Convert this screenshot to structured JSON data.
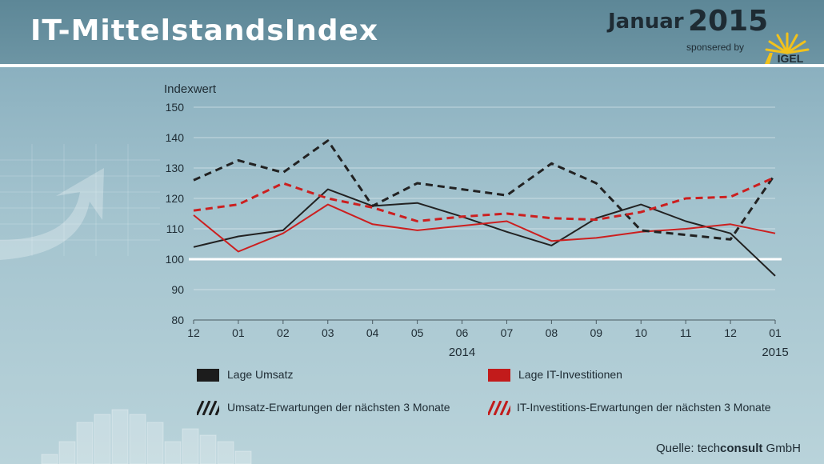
{
  "header": {
    "title": "IT-MittelstandsIndex",
    "month": "Januar",
    "year": "2015",
    "sponsored": "sponsered by",
    "logo_text": "IGEL"
  },
  "source": {
    "prefix": "Quelle: tech",
    "bold": "consult",
    "suffix": " GmbH"
  },
  "colors": {
    "black_series": "#222222",
    "red_series": "#cc1f1f",
    "reference_line": "#ffffff"
  },
  "chart_data": {
    "type": "line",
    "ylabel": "Indexwert",
    "ylim": [
      80,
      150
    ],
    "yticks": [
      "80",
      "90",
      "100",
      "110",
      "120",
      "130",
      "140",
      "150"
    ],
    "categories": [
      "12",
      "01",
      "02",
      "03",
      "04",
      "05",
      "06",
      "07",
      "08",
      "09",
      "10",
      "11",
      "12",
      "01"
    ],
    "year_labels": [
      {
        "label": "2014",
        "index": 6
      },
      {
        "label": "2015",
        "index": 13
      }
    ],
    "reference_value": 100,
    "grid": true,
    "series": [
      {
        "name": "Lage Umsatz",
        "style": "solid",
        "color": "#222222",
        "values": [
          104,
          107.5,
          109.5,
          123,
          117.5,
          118.5,
          114,
          109,
          104.5,
          113.5,
          118,
          112.5,
          108.5,
          94.5
        ]
      },
      {
        "name": "Lage IT-Investitionen",
        "style": "solid",
        "color": "#cc1f1f",
        "values": [
          114.5,
          102.5,
          108.5,
          118,
          111.5,
          109.5,
          111,
          112.5,
          106,
          107,
          109,
          110,
          111.5,
          108.5
        ]
      },
      {
        "name": "Umsatz-Erwartungen der nächsten 3 Monate",
        "style": "dashed",
        "color": "#222222",
        "values": [
          126,
          132.5,
          128.5,
          139,
          117.5,
          125,
          123,
          121,
          131.5,
          125,
          109.5,
          108,
          106.5,
          128
        ]
      },
      {
        "name": "IT-Investitions-Erwartungen der nächsten 3 Monate",
        "style": "dashed",
        "color": "#cc1f1f",
        "values": [
          116,
          118,
          125,
          120,
          117,
          112.5,
          114,
          115,
          113.5,
          113,
          115.5,
          120,
          120.5,
          127
        ]
      }
    ]
  }
}
